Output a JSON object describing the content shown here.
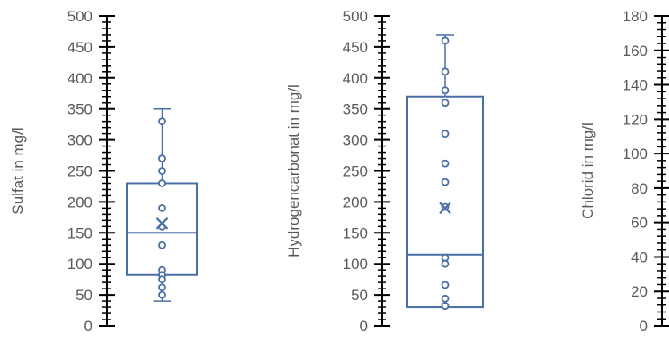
{
  "chart_data": [
    {
      "type": "box",
      "ylabel": "Sulfat in mg/l",
      "ylim": [
        0,
        500
      ],
      "yticks": [
        0,
        50,
        100,
        150,
        200,
        250,
        300,
        350,
        400,
        450,
        500
      ],
      "box": {
        "min": 40,
        "q1": 82,
        "median": 150,
        "q3": 230,
        "max": 350,
        "mean": 165
      },
      "points": [
        330,
        270,
        250,
        230,
        190,
        160,
        130,
        90,
        82,
        75,
        62,
        50
      ]
    },
    {
      "type": "box",
      "ylabel": "Hydrogencarbonat in mg/l",
      "ylim": [
        0,
        500
      ],
      "yticks": [
        0,
        50,
        100,
        150,
        200,
        250,
        300,
        350,
        400,
        450,
        500
      ],
      "box": {
        "min": 30,
        "q1": 30,
        "median": 115,
        "q3": 370,
        "max": 470,
        "mean": 190
      },
      "points": [
        460,
        410,
        380,
        360,
        310,
        262,
        232,
        192,
        110,
        100,
        66,
        44,
        32
      ]
    },
    {
      "type": "box",
      "ylabel": "Chlorid in mg/l",
      "ylim": [
        0,
        180
      ],
      "yticks": [
        0,
        20,
        40,
        60,
        80,
        100,
        120,
        140,
        160,
        180
      ],
      "box": null,
      "points": []
    }
  ],
  "colors": {
    "box": "#4a6fa5",
    "axis": "#000000",
    "text": "#595959"
  }
}
